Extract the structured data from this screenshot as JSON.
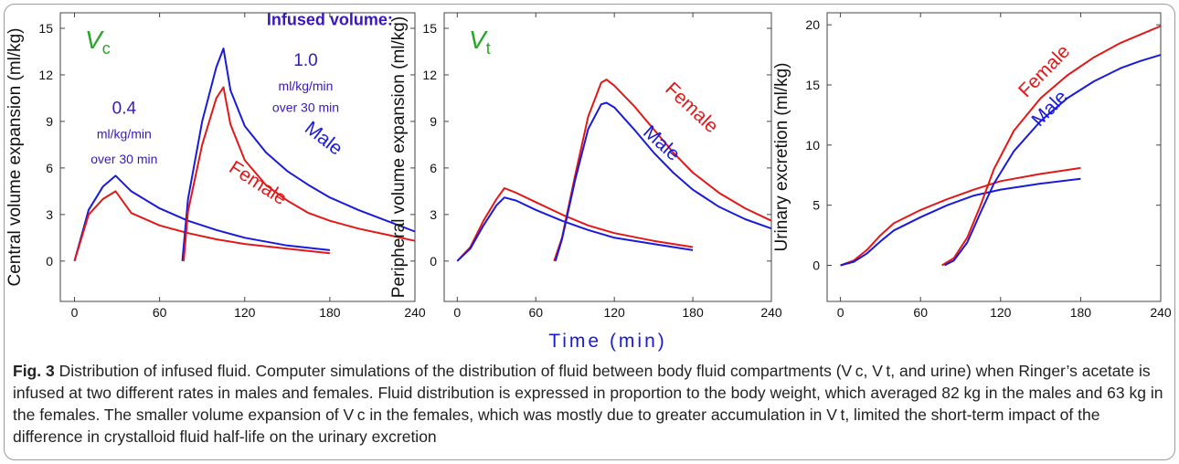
{
  "chart_data": [
    {
      "type": "line",
      "panel_label": "V",
      "panel_label_sub": "c",
      "ylabel": "Central volume expansion (ml/kg)",
      "xlim": [
        -10,
        240
      ],
      "ylim": [
        -2.6,
        16
      ],
      "xticks": [
        0,
        60,
        120,
        180,
        240
      ],
      "yticks": [
        0,
        3,
        6,
        9,
        12,
        15
      ],
      "series": [
        {
          "name": "Male",
          "color": "#1a1adb",
          "x": [
            0,
            10,
            20,
            29,
            40,
            60,
            80,
            100,
            120,
            150,
            180
          ],
          "y": [
            0,
            3.3,
            4.8,
            5.5,
            4.5,
            3.4,
            2.6,
            2.0,
            1.5,
            1.0,
            0.7
          ]
        },
        {
          "name": "Female",
          "color": "#e21818",
          "x": [
            0,
            10,
            20,
            29,
            40,
            60,
            80,
            100,
            120,
            150,
            180
          ],
          "y": [
            0,
            3.0,
            4.0,
            4.5,
            3.1,
            2.3,
            1.8,
            1.4,
            1.1,
            0.8,
            0.5
          ]
        },
        {
          "name": "Male",
          "color": "#1a1adb",
          "x": [
            76,
            80,
            90,
            100,
            105,
            110,
            120,
            135,
            150,
            165,
            180,
            200,
            220,
            240
          ],
          "y": [
            0,
            4.0,
            9.0,
            12.5,
            13.7,
            11.0,
            8.7,
            7.0,
            5.8,
            4.9,
            4.1,
            3.3,
            2.6,
            1.9
          ]
        },
        {
          "name": "Female",
          "color": "#e21818",
          "x": [
            77,
            80,
            90,
            100,
            105,
            110,
            120,
            135,
            150,
            165,
            180,
            200,
            220,
            240
          ],
          "y": [
            0,
            3.2,
            7.5,
            10.5,
            11.2,
            8.8,
            6.5,
            4.9,
            3.9,
            3.1,
            2.6,
            2.1,
            1.7,
            1.3
          ]
        }
      ],
      "labels": [
        {
          "text": "Male",
          "color": "#1a1adb",
          "x": 173,
          "y": 7.6,
          "angle": 38,
          "size": 21
        },
        {
          "text": "Female",
          "color": "#e21818",
          "x": 127,
          "y": 4.7,
          "angle": 33,
          "size": 21
        }
      ],
      "annotations": [
        {
          "text": "Infused volume:",
          "x": 180,
          "y": 15.2,
          "size": 18,
          "bold": true
        },
        {
          "text": "1.0",
          "x": 163,
          "y": 12.6,
          "size": 19
        },
        {
          "text": "ml/kg/min",
          "x": 163,
          "y": 11.0,
          "size": 14
        },
        {
          "text": "over 30 min",
          "x": 163,
          "y": 9.6,
          "size": 14
        },
        {
          "text": "0.4",
          "x": 35,
          "y": 9.5,
          "size": 19
        },
        {
          "text": "ml/kg/min",
          "x": 35,
          "y": 7.9,
          "size": 14
        },
        {
          "text": "over 30 min",
          "x": 35,
          "y": 6.3,
          "size": 14
        }
      ]
    },
    {
      "type": "line",
      "panel_label": "V",
      "panel_label_sub": "t",
      "ylabel": "Peripheral volume expansion (ml/kg)",
      "xlabel": "Time (min)",
      "xlim": [
        -10,
        240
      ],
      "ylim": [
        -2.6,
        16
      ],
      "xticks": [
        0,
        60,
        120,
        180,
        240
      ],
      "yticks": [
        0,
        3,
        6,
        9,
        12,
        15
      ],
      "series": [
        {
          "name": "Female",
          "color": "#e21818",
          "x": [
            0,
            10,
            20,
            30,
            36,
            45,
            60,
            80,
            100,
            120,
            150,
            180
          ],
          "y": [
            0,
            0.9,
            2.6,
            4.0,
            4.7,
            4.4,
            3.8,
            3.0,
            2.3,
            1.8,
            1.3,
            0.9
          ]
        },
        {
          "name": "Male",
          "color": "#1a1adb",
          "x": [
            0,
            10,
            20,
            30,
            36,
            45,
            60,
            80,
            100,
            120,
            150,
            180
          ],
          "y": [
            0,
            0.8,
            2.3,
            3.6,
            4.1,
            3.9,
            3.3,
            2.6,
            2.0,
            1.5,
            1.1,
            0.7
          ]
        },
        {
          "name": "Female",
          "color": "#e21818",
          "x": [
            74,
            80,
            90,
            100,
            110,
            114,
            120,
            135,
            150,
            165,
            180,
            200,
            220,
            240
          ],
          "y": [
            0,
            1.5,
            5.5,
            9.3,
            11.5,
            11.7,
            11.3,
            10.0,
            8.5,
            7.0,
            5.7,
            4.4,
            3.4,
            2.6
          ]
        },
        {
          "name": "Male",
          "color": "#1a1adb",
          "x": [
            75,
            80,
            90,
            100,
            110,
            114,
            120,
            135,
            150,
            165,
            180,
            200,
            220,
            240
          ],
          "y": [
            0,
            1.4,
            5.2,
            8.5,
            10.1,
            10.2,
            9.9,
            8.5,
            7.0,
            5.7,
            4.6,
            3.5,
            2.7,
            2.1
          ]
        }
      ],
      "labels": [
        {
          "text": "Female",
          "color": "#e21818",
          "x": 176,
          "y": 9.6,
          "angle": 43,
          "size": 21
        },
        {
          "text": "Male",
          "color": "#1a1adb",
          "x": 153,
          "y": 7.3,
          "angle": 42,
          "size": 21
        }
      ],
      "annotations": []
    },
    {
      "type": "line",
      "ylabel": "Urinary excretion (ml/kg)",
      "xlim": [
        -10,
        240
      ],
      "ylim": [
        -3.0,
        21
      ],
      "xticks": [
        0,
        60,
        120,
        180,
        240
      ],
      "yticks": [
        0,
        5,
        10,
        15,
        20
      ],
      "series": [
        {
          "name": "Female",
          "color": "#e21818",
          "x": [
            0,
            10,
            20,
            30,
            40,
            60,
            80,
            100,
            120,
            150,
            180
          ],
          "y": [
            0,
            0.4,
            1.3,
            2.5,
            3.5,
            4.6,
            5.5,
            6.3,
            7.0,
            7.6,
            8.1
          ]
        },
        {
          "name": "Male",
          "color": "#1a1adb",
          "x": [
            0,
            10,
            20,
            30,
            40,
            60,
            80,
            100,
            120,
            150,
            180
          ],
          "y": [
            0,
            0.3,
            1.0,
            2.0,
            2.9,
            4.0,
            5.0,
            5.8,
            6.3,
            6.8,
            7.2
          ]
        },
        {
          "name": "Female",
          "color": "#e21818",
          "x": [
            76,
            85,
            95,
            105,
            115,
            130,
            150,
            170,
            190,
            210,
            225,
            240
          ],
          "y": [
            0,
            0.6,
            2.3,
            5.0,
            8.0,
            11.2,
            13.9,
            15.8,
            17.3,
            18.5,
            19.2,
            19.9
          ]
        },
        {
          "name": "Male",
          "color": "#1a1adb",
          "x": [
            78,
            85,
            95,
            105,
            115,
            130,
            150,
            170,
            190,
            210,
            225,
            240
          ],
          "y": [
            0,
            0.4,
            1.9,
            4.4,
            6.8,
            9.5,
            12.0,
            13.9,
            15.3,
            16.4,
            17.0,
            17.5
          ]
        }
      ],
      "labels": [
        {
          "text": "Female",
          "color": "#e21818",
          "x": 156,
          "y": 15.8,
          "angle": -46,
          "size": 21
        },
        {
          "text": "Male",
          "color": "#1a1adb",
          "x": 160,
          "y": 12.7,
          "angle": -46,
          "size": 21
        }
      ],
      "annotations": []
    }
  ],
  "annotation_color": "#3a18b8",
  "panel_label_color": "#28a428",
  "xlabel_color": "#1a1adb",
  "caption": {
    "fig_label": "Fig. 3",
    "text": " Distribution of infused fluid. Computer simulations of the distribution of fluid between body fluid compartments (V c, V t, and urine) when Ringer’s acetate is infused at two different rates in males and females. Fluid distribution is expressed in proportion to the body weight, which averaged 82 kg in the males and 63 kg in the females. The smaller volume expansion of V c in the females, which was mostly due to greater accumulation in V t, limited the short-term impact of the difference in crystalloid fluid half-life on the urinary excretion"
  }
}
